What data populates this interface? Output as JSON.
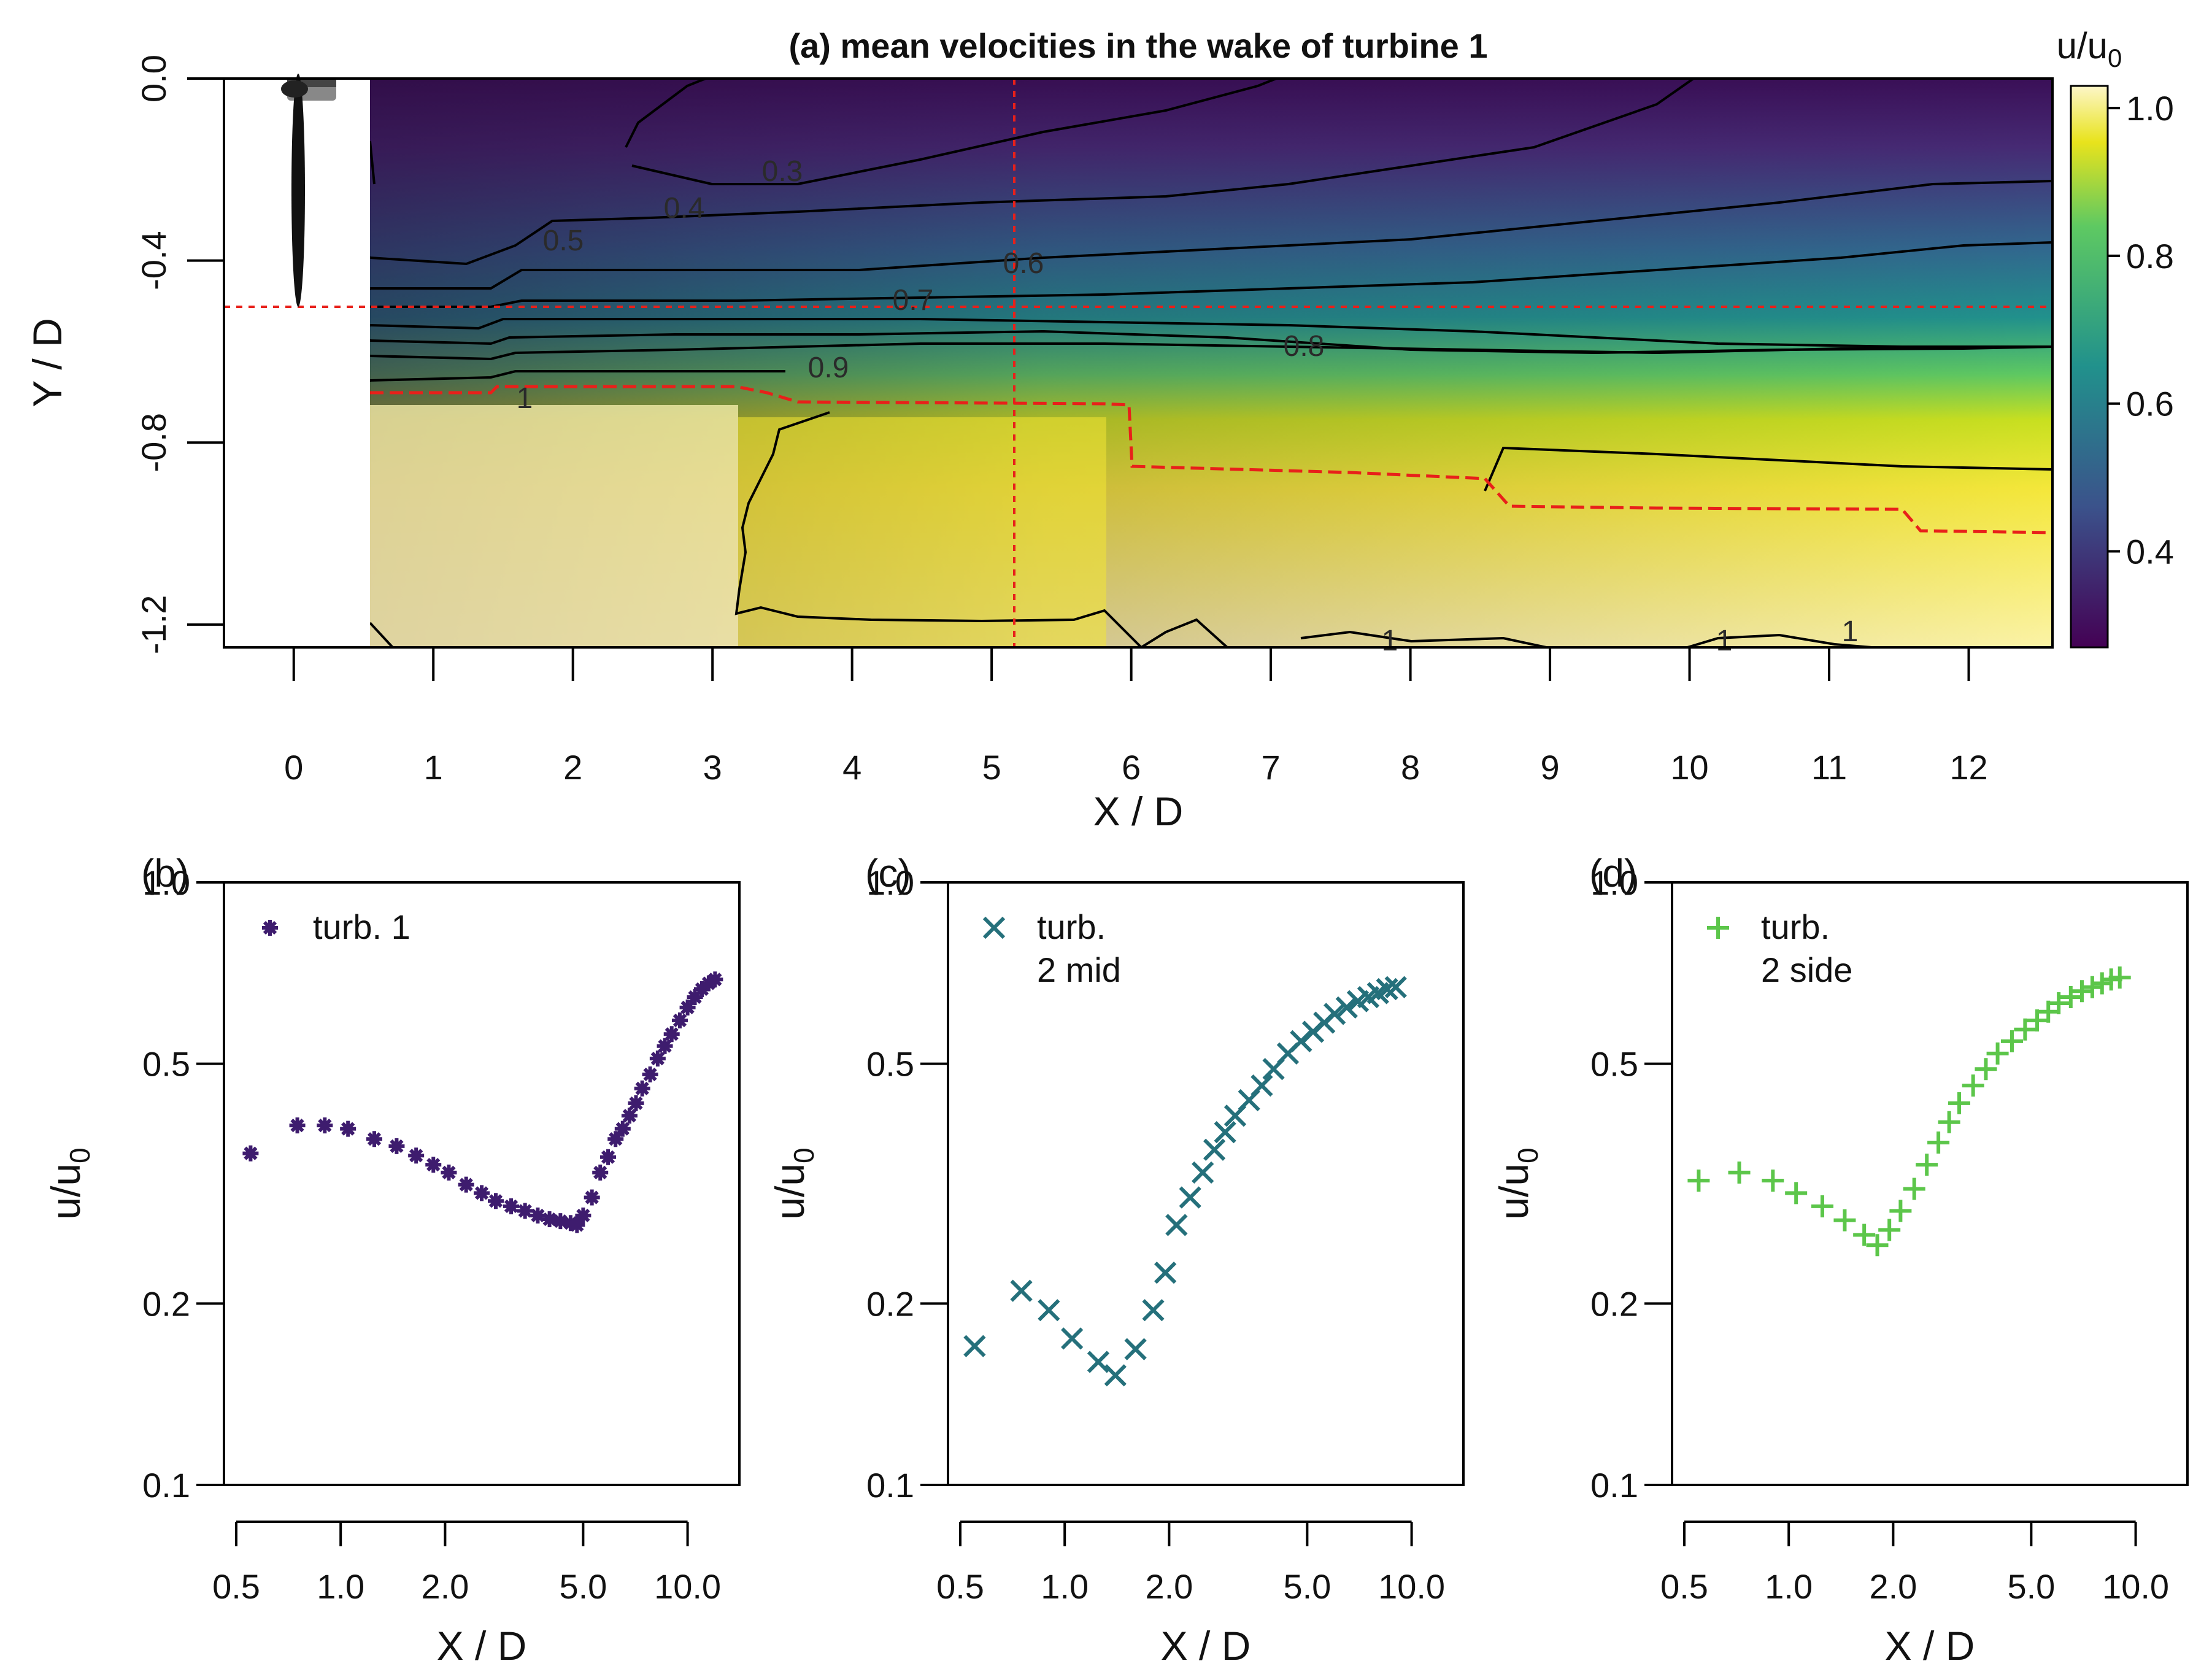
{
  "chart_data": [
    {
      "panel": "(a)",
      "type": "heatmap",
      "title": "(a) mean velocities in the wake of turbine 1",
      "xlabel": "X / D",
      "ylabel": "Y / D",
      "xlim": [
        -0.5,
        12.6
      ],
      "ylim": [
        -1.25,
        0.0
      ],
      "xticks": [
        "0",
        "1",
        "2",
        "3",
        "4",
        "5",
        "6",
        "7",
        "8",
        "9",
        "10",
        "11",
        "12"
      ],
      "yticks": [
        "0.0",
        "-0.4",
        "-0.8",
        "-1.2"
      ],
      "colorbar": {
        "label": "u/u0",
        "range": [
          0.27,
          1.03
        ],
        "ticks": [
          "0.4",
          "0.6",
          "0.8",
          "1.0"
        ]
      },
      "contour_levels": [
        "0.3",
        "0.4",
        "0.5",
        "0.6",
        "0.7",
        "0.8",
        "0.9",
        "1",
        "1",
        "1",
        "1"
      ],
      "reference_lines": {
        "x": 5.2,
        "y": -0.5
      }
    },
    {
      "panel": "(b)",
      "type": "scatter",
      "xscale": "log",
      "yscale": "log",
      "xlabel": "X / D",
      "ylabel": "u/u0",
      "xlim": [
        0.5,
        13
      ],
      "ylim": [
        0.1,
        1.0
      ],
      "xticks": [
        "0.5",
        "1.0",
        "2.0",
        "5.0",
        "10.0"
      ],
      "yticks": [
        "0.1",
        "0.2",
        "0.5",
        "1.0"
      ],
      "series": [
        {
          "name": "turb. 1",
          "marker": "*",
          "color": "#3e1c6e",
          "x": [
            0.55,
            0.75,
            0.9,
            1.05,
            1.25,
            1.45,
            1.65,
            1.85,
            2.05,
            2.3,
            2.55,
            2.8,
            3.1,
            3.4,
            3.7,
            4.0,
            4.3,
            4.6,
            4.8,
            5.0,
            5.3,
            5.6,
            5.9,
            6.2,
            6.5,
            6.8,
            7.1,
            7.4,
            7.8,
            8.2,
            8.6,
            9.0,
            9.5,
            10.0,
            10.5,
            11.0,
            11.5,
            12.0
          ],
          "y": [
            0.355,
            0.395,
            0.395,
            0.39,
            0.375,
            0.365,
            0.352,
            0.34,
            0.33,
            0.315,
            0.305,
            0.296,
            0.29,
            0.285,
            0.28,
            0.276,
            0.274,
            0.272,
            0.27,
            0.28,
            0.3,
            0.33,
            0.35,
            0.375,
            0.39,
            0.41,
            0.43,
            0.455,
            0.48,
            0.51,
            0.535,
            0.56,
            0.59,
            0.62,
            0.645,
            0.665,
            0.68,
            0.69
          ]
        }
      ]
    },
    {
      "panel": "(c)",
      "type": "scatter",
      "xscale": "log",
      "yscale": "log",
      "xlabel": "X / D",
      "ylabel": "u/u0",
      "xlim": [
        0.5,
        13
      ],
      "ylim": [
        0.1,
        1.0
      ],
      "xticks": [
        "0.5",
        "1.0",
        "2.0",
        "5.0",
        "10.0"
      ],
      "yticks": [
        "0.1",
        "0.2",
        "0.5",
        "1.0"
      ],
      "series": [
        {
          "name": "turb. 2 mid",
          "marker": "x",
          "color": "#25707b",
          "x": [
            0.55,
            0.75,
            0.9,
            1.05,
            1.25,
            1.4,
            1.6,
            1.8,
            1.95,
            2.1,
            2.3,
            2.5,
            2.7,
            2.9,
            3.1,
            3.4,
            3.7,
            4.0,
            4.4,
            4.8,
            5.2,
            5.6,
            6.0,
            6.5,
            7.0,
            7.5,
            8.0,
            8.5,
            9.0
          ],
          "y": [
            0.17,
            0.21,
            0.195,
            0.175,
            0.16,
            0.152,
            0.168,
            0.195,
            0.225,
            0.27,
            0.3,
            0.33,
            0.36,
            0.385,
            0.41,
            0.435,
            0.46,
            0.49,
            0.52,
            0.545,
            0.565,
            0.585,
            0.605,
            0.62,
            0.635,
            0.645,
            0.655,
            0.665,
            0.67
          ]
        }
      ]
    },
    {
      "panel": "(d)",
      "type": "scatter",
      "xscale": "log",
      "yscale": "log",
      "xlabel": "X / D",
      "ylabel": "u/u0",
      "xlim": [
        0.5,
        13
      ],
      "ylim": [
        0.1,
        1.0
      ],
      "xticks": [
        "0.5",
        "1.0",
        "2.0",
        "5.0",
        "10.0"
      ],
      "yticks": [
        "0.1",
        "0.2",
        "0.5",
        "1.0"
      ],
      "series": [
        {
          "name": "turb. 2 side",
          "marker": "+",
          "color": "#5cc64a",
          "x": [
            0.55,
            0.72,
            0.9,
            1.05,
            1.25,
            1.45,
            1.65,
            1.8,
            1.95,
            2.1,
            2.3,
            2.5,
            2.7,
            2.9,
            3.1,
            3.4,
            3.7,
            4.0,
            4.4,
            4.8,
            5.2,
            5.6,
            6.0,
            6.5,
            7.0,
            7.5,
            8.0,
            8.5,
            9.0
          ],
          "y": [
            0.32,
            0.33,
            0.32,
            0.305,
            0.29,
            0.275,
            0.26,
            0.25,
            0.265,
            0.285,
            0.31,
            0.34,
            0.37,
            0.4,
            0.43,
            0.46,
            0.49,
            0.52,
            0.545,
            0.57,
            0.59,
            0.61,
            0.63,
            0.645,
            0.66,
            0.67,
            0.68,
            0.69,
            0.695
          ]
        }
      ]
    }
  ],
  "legend": {
    "b": [
      "turb. 1"
    ],
    "c": [
      "turb.",
      "2 mid"
    ],
    "d": [
      "turb.",
      "2 side"
    ]
  }
}
